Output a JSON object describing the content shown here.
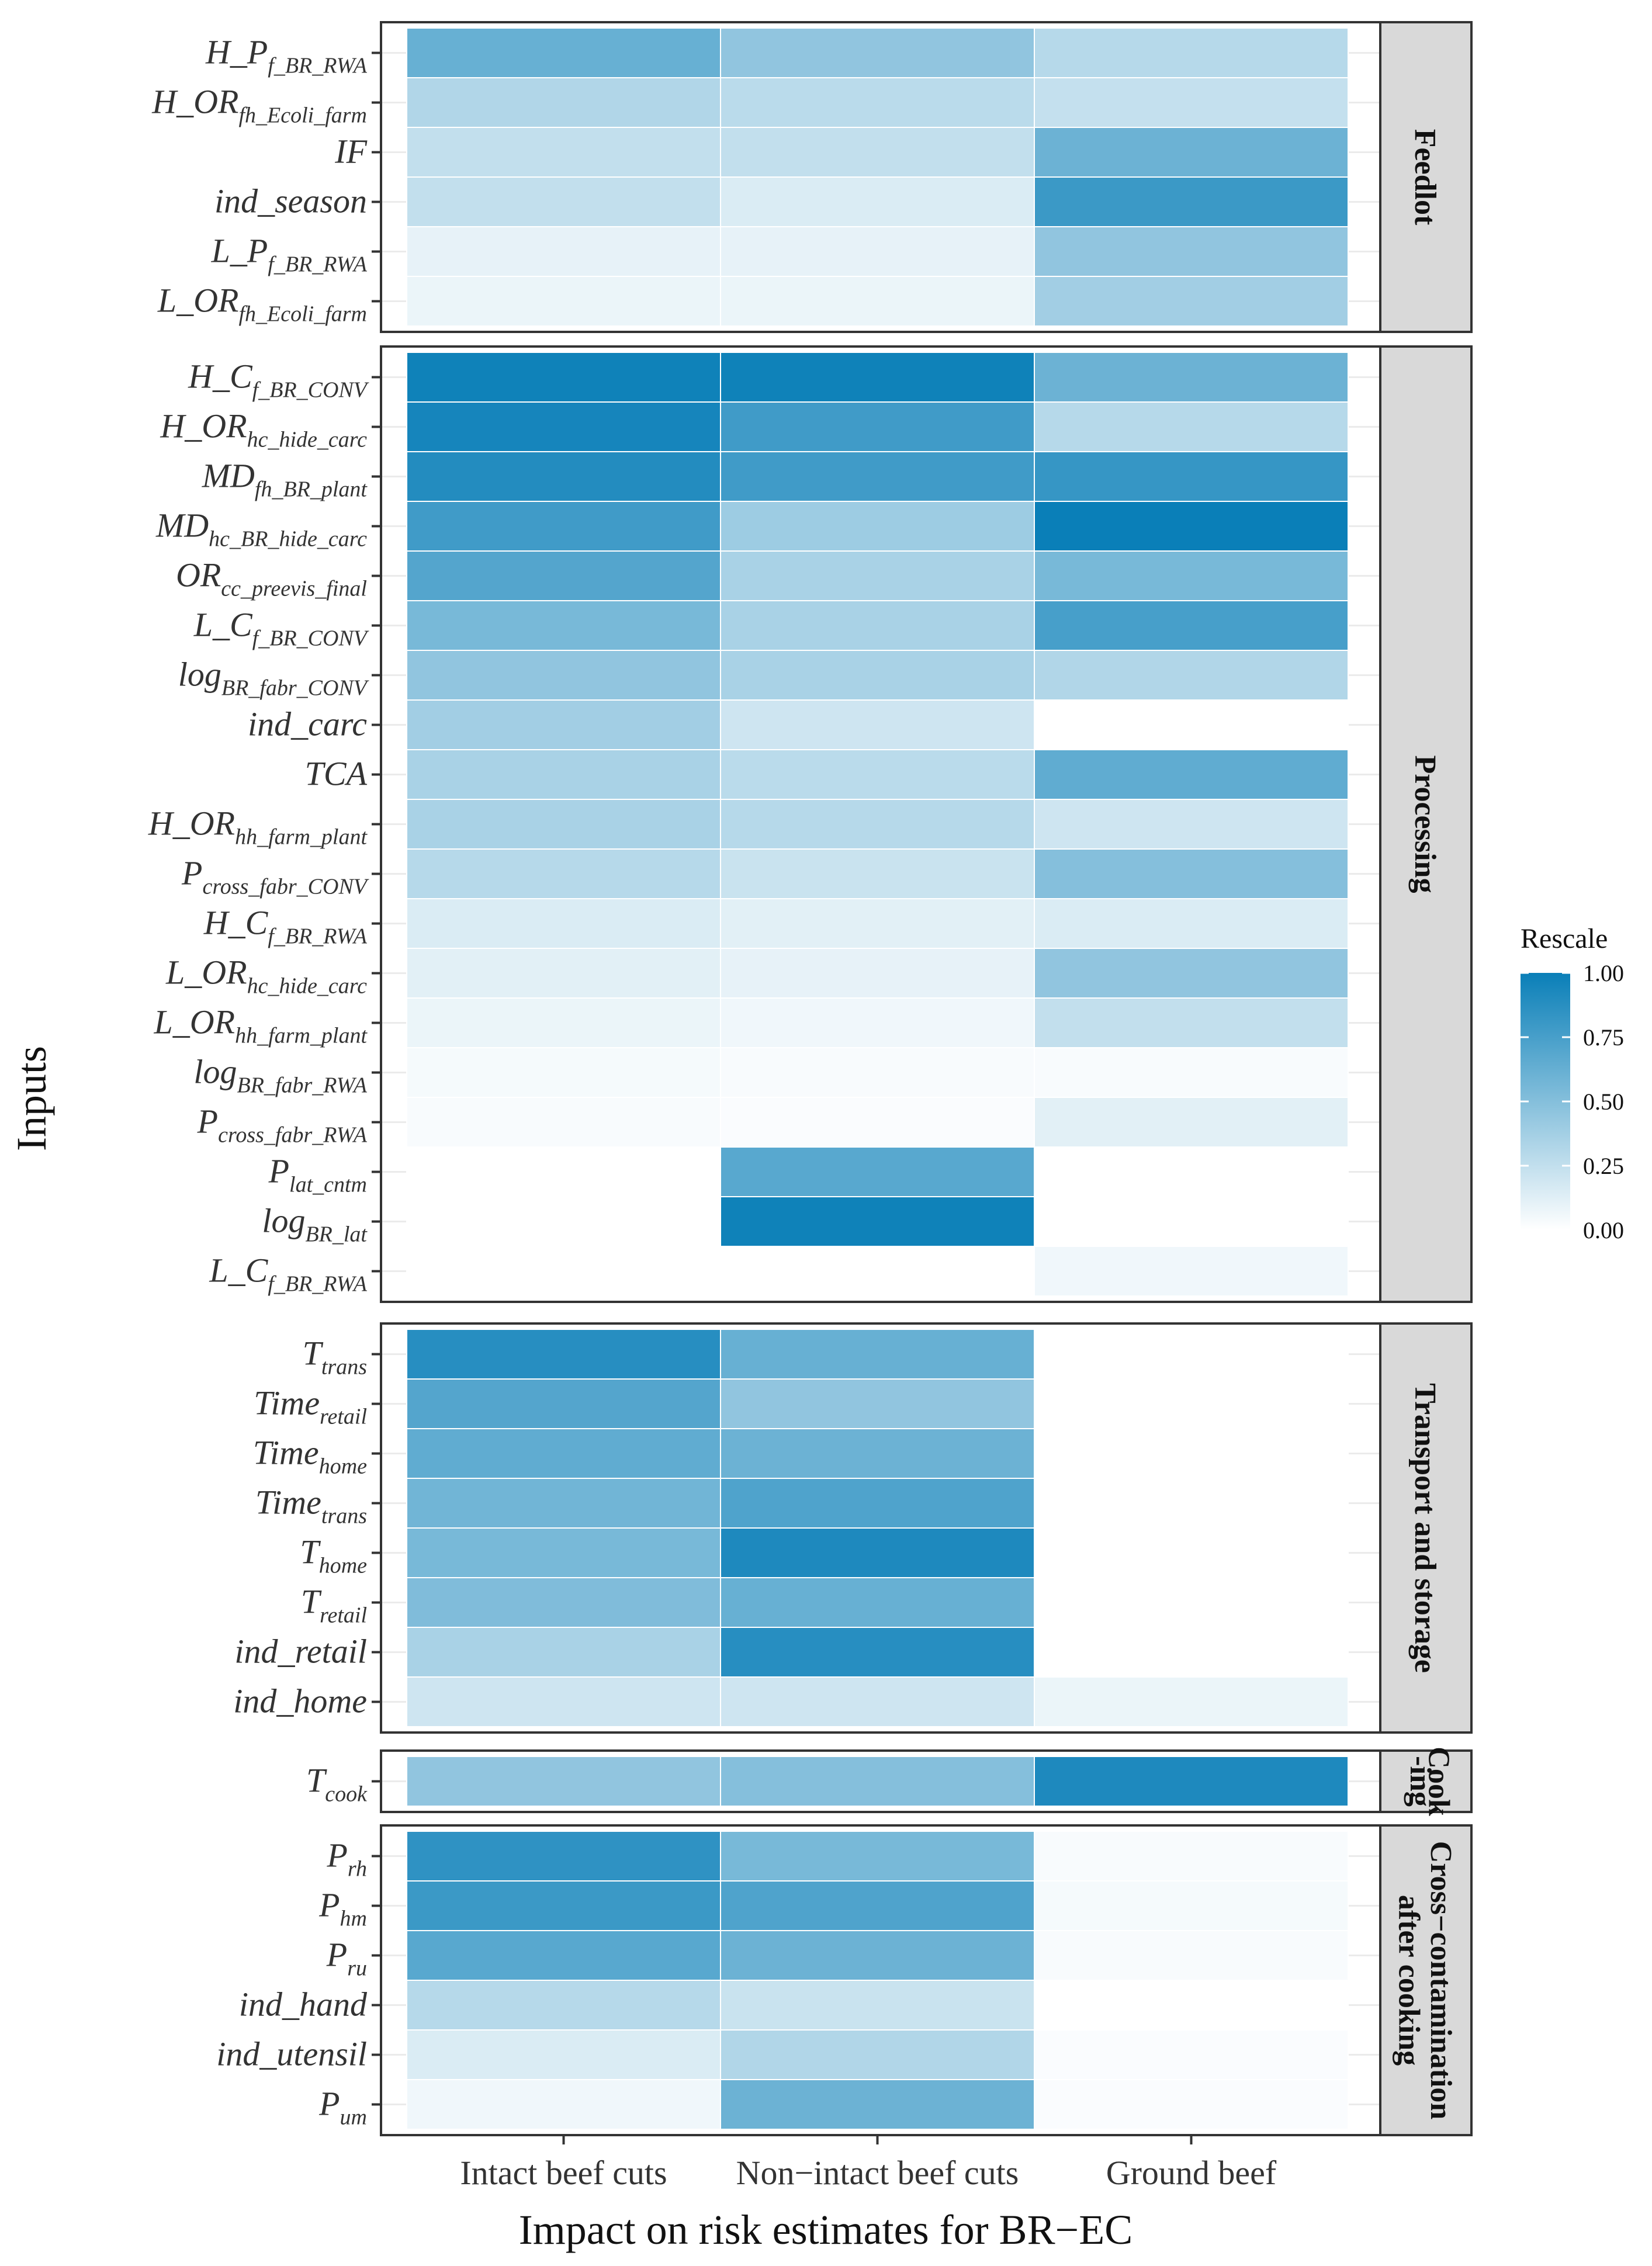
{
  "chart_data": {
    "type": "heatmap",
    "xlabel": "Impact on risk estimates for BR−EC",
    "ylabel": "Inputs",
    "columns": [
      "Intact beef cuts",
      "Non−intact beef cuts",
      "Ground beef"
    ],
    "legend": {
      "title": "Rescale",
      "ticks": [
        "1.00",
        "0.75",
        "0.50",
        "0.25",
        "0.00"
      ],
      "range": [
        0,
        1
      ],
      "low_color": "#ffffff",
      "high_color": "#0a7fb8"
    },
    "panels": [
      {
        "label": "Feedlot",
        "rows": [
          {
            "base": "H_P",
            "sub": "f_BR_RWA",
            "values": [
              0.62,
              0.45,
              0.3
            ]
          },
          {
            "base": "H_OR",
            "sub": "fh_Ecoli_farm",
            "values": [
              0.32,
              0.28,
              0.24
            ]
          },
          {
            "base": "IF",
            "sub": "",
            "values": [
              0.25,
              0.25,
              0.6
            ]
          },
          {
            "base": "ind_season",
            "sub": "",
            "values": [
              0.25,
              0.15,
              0.8
            ]
          },
          {
            "base": "L_P",
            "sub": "f_BR_RWA",
            "values": [
              0.1,
              0.1,
              0.45
            ]
          },
          {
            "base": "L_OR",
            "sub": "fh_Ecoli_farm",
            "values": [
              0.08,
              0.08,
              0.38
            ]
          }
        ]
      },
      {
        "label": "Processing",
        "rows": [
          {
            "base": "H_C",
            "sub": "f_BR_CONV",
            "values": [
              0.98,
              0.98,
              0.6
            ]
          },
          {
            "base": "H_OR",
            "sub": "hc_hide_carc",
            "values": [
              0.95,
              0.78,
              0.3
            ]
          },
          {
            "base": "MD",
            "sub": "fh_BR_plant",
            "values": [
              0.9,
              0.78,
              0.82
            ]
          },
          {
            "base": "MD",
            "sub": "hc_BR_hide_carc",
            "values": [
              0.78,
              0.4,
              1.0
            ]
          },
          {
            "base": "OR",
            "sub": "cc_preevis_final",
            "values": [
              0.7,
              0.35,
              0.55
            ]
          },
          {
            "base": "L_C",
            "sub": "f_BR_CONV",
            "values": [
              0.55,
              0.35,
              0.75
            ]
          },
          {
            "base": "log",
            "sub": "BR_fabr_CONV",
            "values": [
              0.45,
              0.35,
              0.32
            ]
          },
          {
            "base": "ind_carc",
            "sub": "",
            "values": [
              0.38,
              0.2,
              0.0
            ]
          },
          {
            "base": "TCA",
            "sub": "",
            "values": [
              0.35,
              0.28,
              0.65
            ]
          },
          {
            "base": "H_OR",
            "sub": "hh_farm_plant",
            "values": [
              0.35,
              0.3,
              0.2
            ]
          },
          {
            "base": "P",
            "sub": "cross_fabr_CONV",
            "values": [
              0.3,
              0.22,
              0.5
            ]
          },
          {
            "base": "H_C",
            "sub": "f_BR_RWA",
            "values": [
              0.15,
              0.12,
              0.15
            ]
          },
          {
            "base": "L_OR",
            "sub": "hc_hide_carc",
            "values": [
              0.12,
              0.1,
              0.45
            ]
          },
          {
            "base": "L_OR",
            "sub": "hh_farm_plant",
            "values": [
              0.08,
              0.06,
              0.25
            ]
          },
          {
            "base": "log",
            "sub": "BR_fabr_RWA",
            "values": [
              0.04,
              0.03,
              0.03
            ]
          },
          {
            "base": "P",
            "sub": "cross_fabr_RWA",
            "values": [
              0.03,
              0.02,
              0.12
            ]
          },
          {
            "base": "P",
            "sub": "lat_cntm",
            "values": [
              0.0,
              0.68,
              0.0
            ]
          },
          {
            "base": "log",
            "sub": "BR_lat",
            "values": [
              0.0,
              0.98,
              0.0
            ]
          },
          {
            "base": "L_C",
            "sub": "f_BR_RWA",
            "values": [
              0.0,
              0.0,
              0.06
            ]
          }
        ]
      },
      {
        "label": "Transport and storage",
        "rows": [
          {
            "base": "T",
            "sub": "trans",
            "values": [
              0.88,
              0.62,
              0.0
            ]
          },
          {
            "base": "Time",
            "sub": "retail",
            "values": [
              0.7,
              0.45,
              0.0
            ]
          },
          {
            "base": "Time",
            "sub": "home",
            "values": [
              0.65,
              0.6,
              0.0
            ]
          },
          {
            "base": "Time",
            "sub": "trans",
            "values": [
              0.58,
              0.72,
              0.0
            ]
          },
          {
            "base": "T",
            "sub": "home",
            "values": [
              0.55,
              0.92,
              0.0
            ]
          },
          {
            "base": "T",
            "sub": "retail",
            "values": [
              0.52,
              0.62,
              0.0
            ]
          },
          {
            "base": "ind_retail",
            "sub": "",
            "values": [
              0.35,
              0.88,
              0.0
            ]
          },
          {
            "base": "ind_home",
            "sub": "",
            "values": [
              0.2,
              0.2,
              0.08
            ]
          }
        ]
      },
      {
        "label": "Cook-ing",
        "rows": [
          {
            "base": "T",
            "sub": "cook",
            "values": [
              0.45,
              0.5,
              0.92
            ]
          }
        ]
      },
      {
        "label": "Cross−contamination after cooking",
        "rows": [
          {
            "base": "P",
            "sub": "rh",
            "values": [
              0.85,
              0.55,
              0.03
            ]
          },
          {
            "base": "P",
            "sub": "hm",
            "values": [
              0.8,
              0.72,
              0.04
            ]
          },
          {
            "base": "P",
            "sub": "ru",
            "values": [
              0.68,
              0.6,
              0.03
            ]
          },
          {
            "base": "ind_hand",
            "sub": "",
            "values": [
              0.3,
              0.22,
              0.0
            ]
          },
          {
            "base": "ind_utensil",
            "sub": "",
            "values": [
              0.15,
              0.32,
              0.02
            ]
          },
          {
            "base": "P",
            "sub": "um",
            "values": [
              0.06,
              0.6,
              0.02
            ]
          }
        ]
      }
    ]
  }
}
